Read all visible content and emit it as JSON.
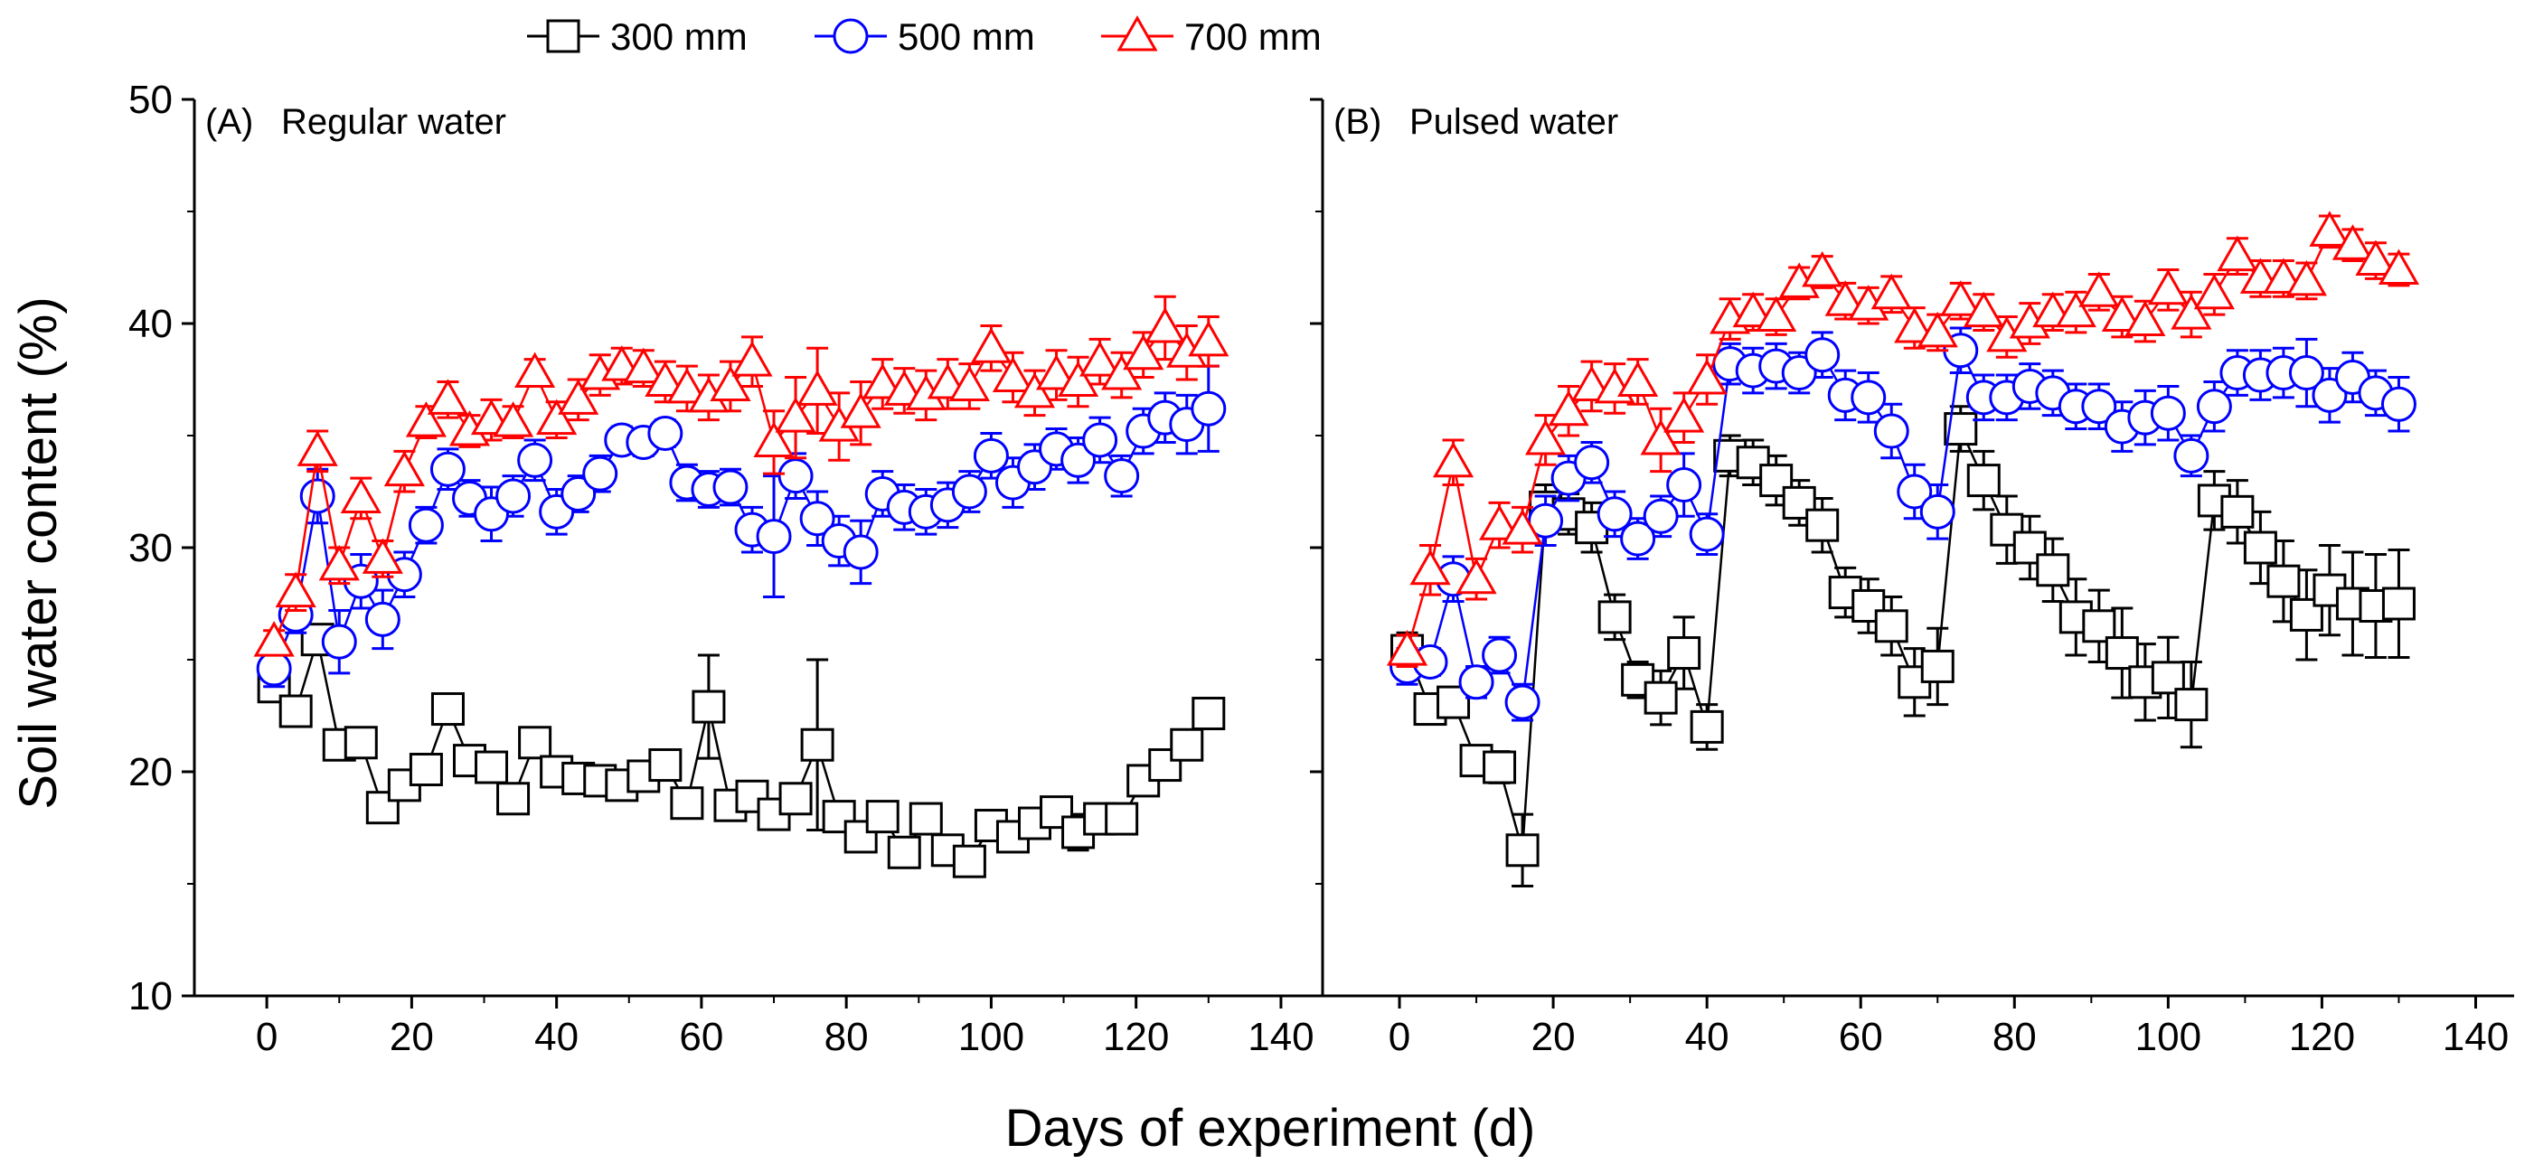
{
  "chart_data": {
    "type": "line",
    "shared_ylabel": "Soil water content (%)",
    "shared_xlabel": "Days of experiment (d)",
    "legend": {
      "placement": "top-center",
      "entries": [
        {
          "name": "300 mm",
          "color": "#000000",
          "marker": "square"
        },
        {
          "name": "500 mm",
          "color": "#0000ff",
          "marker": "circle"
        },
        {
          "name": "700 mm",
          "color": "#ff0000",
          "marker": "triangle"
        }
      ]
    },
    "xlim": [
      -10,
      145
    ],
    "ylim": [
      10,
      50
    ],
    "xticks": [
      0,
      20,
      40,
      60,
      80,
      100,
      120,
      140
    ],
    "yticks": [
      10,
      20,
      30,
      40,
      50
    ],
    "panels": [
      {
        "id": "A",
        "panel_letter": "(A)",
        "title": "Regular water",
        "series": [
          {
            "name": "300 mm",
            "x": [
              1,
              4,
              7,
              10,
              13,
              16,
              19,
              22,
              25,
              28,
              31,
              34,
              37,
              40,
              43,
              46,
              49,
              52,
              55,
              58,
              61,
              64,
              67,
              70,
              73,
              76,
              79,
              82,
              85,
              88,
              91,
              94,
              97,
              100,
              103,
              106,
              109,
              112,
              115,
              118,
              121,
              124,
              127,
              130
            ],
            "y": [
              23.8,
              22.7,
              25.9,
              21.2,
              21.3,
              18.4,
              19.4,
              20.1,
              22.8,
              20.5,
              20.2,
              18.8,
              21.3,
              20.0,
              19.7,
              19.6,
              19.4,
              19.8,
              20.3,
              18.6,
              22.9,
              18.5,
              18.9,
              18.1,
              18.8,
              21.2,
              18.0,
              17.1,
              18.0,
              16.4,
              17.9,
              16.5,
              16.0,
              17.6,
              17.1,
              17.7,
              18.2,
              17.3,
              17.9,
              17.9,
              19.6,
              20.3,
              21.2,
              22.6
            ],
            "err": [
              0.4,
              0.3,
              0.5,
              0.5,
              0.4,
              0.6,
              0.4,
              0.4,
              0.4,
              0.5,
              0.4,
              0.4,
              0.4,
              0.3,
              0.3,
              0.3,
              0.4,
              0.3,
              0.4,
              0.3,
              2.3,
              0.4,
              0.4,
              0.3,
              0.3,
              3.8,
              0.4,
              0.3,
              0.3,
              0.3,
              0.3,
              0.3,
              0.3,
              0.4,
              0.3,
              0.5,
              0.4,
              0.8,
              0.4,
              0.4,
              0.5,
              0.5,
              0.4,
              0.4
            ]
          },
          {
            "name": "500 mm",
            "x": [
              1,
              4,
              7,
              10,
              13,
              16,
              19,
              22,
              25,
              28,
              31,
              34,
              37,
              40,
              43,
              46,
              49,
              52,
              55,
              58,
              61,
              64,
              67,
              70,
              73,
              76,
              79,
              82,
              85,
              88,
              91,
              94,
              97,
              100,
              103,
              106,
              109,
              112,
              115,
              118,
              121,
              124,
              127,
              130
            ],
            "y": [
              24.6,
              27.0,
              32.3,
              25.8,
              28.5,
              26.8,
              28.8,
              31.0,
              33.5,
              32.2,
              31.5,
              32.3,
              33.9,
              31.6,
              32.4,
              33.3,
              34.8,
              34.7,
              35.1,
              32.9,
              32.6,
              32.7,
              30.8,
              30.5,
              33.2,
              31.3,
              30.3,
              29.8,
              32.4,
              31.8,
              31.6,
              31.9,
              32.5,
              34.1,
              32.9,
              33.6,
              34.4,
              33.9,
              34.8,
              33.2,
              35.2,
              35.8,
              35.5,
              36.2
            ],
            "err": [
              0.8,
              0.8,
              1.2,
              1.4,
              1.2,
              1.3,
              1.0,
              0.8,
              0.9,
              0.8,
              1.2,
              0.9,
              0.9,
              1.0,
              0.8,
              0.8,
              0.6,
              0.6,
              0.6,
              0.8,
              0.8,
              0.8,
              1.0,
              2.7,
              1.0,
              1.2,
              1.1,
              1.4,
              1.0,
              1.0,
              1.0,
              1.0,
              0.9,
              1.0,
              1.1,
              1.0,
              0.9,
              1.0,
              1.0,
              0.9,
              1.0,
              1.1,
              1.3,
              1.9
            ]
          },
          {
            "name": "700 mm",
            "x": [
              1,
              4,
              7,
              10,
              13,
              16,
              19,
              22,
              25,
              28,
              31,
              34,
              37,
              40,
              43,
              46,
              49,
              52,
              55,
              58,
              61,
              64,
              67,
              70,
              73,
              76,
              79,
              82,
              85,
              88,
              91,
              94,
              97,
              100,
              103,
              106,
              109,
              112,
              115,
              118,
              121,
              124,
              127,
              130
            ],
            "y": [
              25.8,
              28.0,
              34.3,
              29.2,
              32.2,
              29.5,
              33.4,
              35.6,
              36.6,
              35.2,
              35.7,
              35.6,
              37.8,
              35.7,
              36.6,
              37.7,
              38.1,
              38.0,
              37.4,
              37.1,
              36.7,
              37.2,
              38.3,
              34.7,
              35.8,
              37.0,
              35.4,
              36.0,
              37.3,
              37.0,
              36.8,
              37.3,
              37.2,
              38.9,
              37.6,
              36.9,
              37.7,
              37.4,
              38.3,
              37.7,
              38.6,
              39.8,
              38.7,
              39.2
            ],
            "err": [
              0.5,
              0.8,
              0.9,
              0.8,
              0.9,
              0.8,
              0.9,
              0.7,
              0.8,
              0.7,
              0.9,
              0.7,
              0.6,
              0.8,
              0.9,
              0.9,
              0.8,
              0.8,
              0.9,
              1.0,
              1.0,
              1.1,
              1.1,
              1.4,
              1.8,
              1.9,
              1.5,
              1.4,
              1.1,
              1.0,
              1.1,
              1.1,
              1.0,
              1.0,
              1.1,
              1.0,
              1.1,
              1.1,
              1.0,
              1.0,
              1.0,
              1.4,
              1.2,
              1.1
            ]
          }
        ]
      },
      {
        "id": "B",
        "panel_letter": "(B)",
        "title": "Pulsed water",
        "series": [
          {
            "name": "300 mm",
            "x": [
              1,
              4,
              7,
              10,
              13,
              16,
              19,
              22,
              25,
              28,
              31,
              34,
              37,
              40,
              43,
              46,
              49,
              52,
              55,
              58,
              61,
              64,
              67,
              70,
              73,
              76,
              79,
              82,
              85,
              88,
              91,
              94,
              97,
              100,
              103,
              106,
              109,
              112,
              115,
              118,
              121,
              124,
              127,
              130
            ],
            "y": [
              25.4,
              22.8,
              23.1,
              20.5,
              20.2,
              16.5,
              31.8,
              31.5,
              30.9,
              26.9,
              24.1,
              23.3,
              25.3,
              22.0,
              34.1,
              33.8,
              33.0,
              32.0,
              31.0,
              28.0,
              27.4,
              26.5,
              24.0,
              24.7,
              35.3,
              33.0,
              30.8,
              30.0,
              29.0,
              26.9,
              26.5,
              25.3,
              24.0,
              24.2,
              23.0,
              32.1,
              31.6,
              30.0,
              28.5,
              27.0,
              28.1,
              27.5,
              27.4,
              27.5
            ],
            "err": [
              0.8,
              0.4,
              0.5,
              0.5,
              0.7,
              1.6,
              1.0,
              0.9,
              1.1,
              1.0,
              0.8,
              1.2,
              1.6,
              1.0,
              0.9,
              1.0,
              1.1,
              1.0,
              1.2,
              1.1,
              1.2,
              1.3,
              1.5,
              1.7,
              1.0,
              1.3,
              1.5,
              1.4,
              1.4,
              1.7,
              1.6,
              2.0,
              1.7,
              1.8,
              1.9,
              1.3,
              1.4,
              1.6,
              1.8,
              2.0,
              2.0,
              2.3,
              2.3,
              2.4
            ]
          },
          {
            "name": "500 mm",
            "x": [
              1,
              4,
              7,
              10,
              13,
              16,
              19,
              22,
              25,
              28,
              31,
              34,
              37,
              40,
              43,
              46,
              49,
              52,
              55,
              58,
              61,
              64,
              67,
              70,
              73,
              76,
              79,
              82,
              85,
              88,
              91,
              94,
              97,
              100,
              103,
              106,
              109,
              112,
              115,
              118,
              121,
              124,
              127,
              130
            ],
            "y": [
              24.7,
              24.9,
              28.6,
              24.0,
              25.2,
              23.1,
              31.2,
              33.1,
              33.8,
              31.5,
              30.4,
              31.4,
              32.8,
              30.6,
              38.2,
              37.9,
              38.1,
              37.8,
              38.6,
              36.8,
              36.7,
              35.2,
              32.5,
              31.6,
              38.8,
              36.7,
              36.7,
              37.2,
              36.9,
              36.3,
              36.3,
              35.4,
              35.8,
              36.0,
              34.1,
              36.3,
              37.8,
              37.7,
              37.8,
              37.8,
              36.8,
              37.6,
              36.9,
              36.4
            ],
            "err": [
              0.8,
              0.6,
              1.0,
              0.7,
              0.8,
              0.8,
              1.1,
              1.0,
              0.9,
              1.0,
              0.9,
              0.9,
              1.4,
              0.9,
              0.9,
              1.0,
              1.0,
              0.9,
              1.0,
              1.1,
              1.1,
              1.2,
              1.2,
              1.2,
              1.0,
              1.0,
              1.0,
              1.0,
              1.0,
              1.0,
              1.0,
              1.1,
              1.2,
              1.2,
              0.9,
              1.1,
              1.0,
              1.1,
              1.1,
              1.5,
              1.2,
              1.1,
              1.0,
              1.2
            ]
          },
          {
            "name": "700 mm",
            "x": [
              1,
              4,
              7,
              10,
              13,
              16,
              19,
              22,
              25,
              28,
              31,
              34,
              37,
              40,
              43,
              46,
              49,
              52,
              55,
              58,
              61,
              64,
              67,
              70,
              73,
              76,
              79,
              82,
              85,
              88,
              91,
              94,
              97,
              100,
              103,
              106,
              109,
              112,
              115,
              118,
              121,
              124,
              127,
              130
            ],
            "y": [
              25.4,
              29.0,
              33.8,
              28.6,
              31.0,
              30.8,
              34.8,
              36.1,
              37.2,
              37.1,
              37.4,
              34.8,
              35.8,
              37.5,
              40.2,
              40.5,
              40.3,
              41.8,
              42.3,
              41.0,
              40.8,
              41.3,
              39.8,
              39.6,
              41.0,
              40.5,
              39.4,
              40.0,
              40.5,
              40.5,
              41.4,
              40.3,
              40.1,
              41.5,
              40.4,
              41.3,
              43.0,
              42.0,
              42.0,
              41.9,
              44.1,
              43.5,
              42.8,
              42.4
            ],
            "err": [
              0.7,
              1.1,
              1.0,
              0.9,
              1.0,
              1.0,
              1.1,
              1.1,
              1.1,
              1.1,
              1.0,
              1.4,
              1.1,
              1.1,
              0.9,
              0.8,
              0.8,
              0.7,
              0.7,
              0.8,
              0.8,
              0.8,
              0.9,
              0.8,
              0.8,
              0.8,
              0.9,
              0.9,
              0.8,
              0.9,
              0.8,
              0.9,
              0.9,
              0.9,
              1.0,
              0.9,
              0.8,
              0.8,
              0.8,
              0.8,
              0.7,
              0.7,
              0.8,
              0.7
            ]
          }
        ]
      }
    ]
  }
}
